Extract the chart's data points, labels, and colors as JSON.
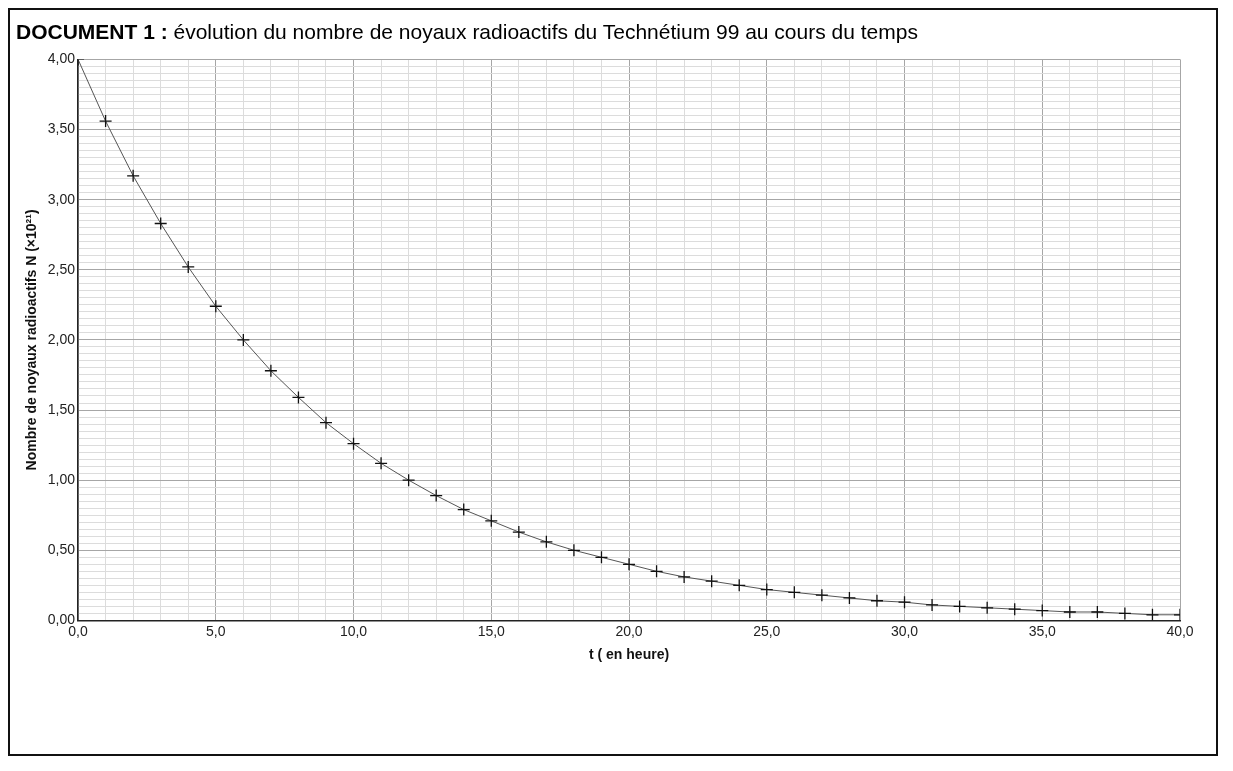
{
  "chart_data": {
    "type": "line",
    "title": "DOCUMENT 1 : évolution du nombre de noyaux radioactifs du Technétium 99 au cours du temps",
    "xlabel": "t ( en heure)",
    "ylabel": "Nombre de noyaux radioactifs N (×10²¹)",
    "x": [
      0,
      1,
      2,
      3,
      4,
      5,
      6,
      7,
      8,
      9,
      10,
      11,
      12,
      13,
      14,
      15,
      16,
      17,
      18,
      19,
      20,
      21,
      22,
      23,
      24,
      25,
      26,
      27,
      28,
      29,
      30,
      31,
      32,
      33,
      34,
      35,
      36,
      37,
      38,
      39,
      40
    ],
    "series": [
      {
        "color": "#555555",
        "values": [
          4.0,
          3.56,
          3.17,
          2.83,
          2.52,
          2.24,
          2.0,
          1.78,
          1.59,
          1.41,
          1.26,
          1.12,
          1.0,
          0.89,
          0.79,
          0.71,
          0.63,
          0.56,
          0.5,
          0.45,
          0.4,
          0.35,
          0.31,
          0.28,
          0.25,
          0.22,
          0.2,
          0.18,
          0.16,
          0.14,
          0.13,
          0.11,
          0.1,
          0.09,
          0.08,
          0.07,
          0.06,
          0.06,
          0.05,
          0.04,
          0.04
        ]
      }
    ],
    "xlim": [
      0,
      40
    ],
    "ylim": [
      0,
      4
    ],
    "xticks": [
      {
        "value": 0,
        "label": "0,0"
      },
      {
        "value": 1,
        "label": null
      },
      {
        "value": 2,
        "label": null
      },
      {
        "value": 3,
        "label": null
      },
      {
        "value": 4,
        "label": null
      },
      {
        "value": 5,
        "label": "5,0"
      },
      {
        "value": 6,
        "label": null
      },
      {
        "value": 7,
        "label": null
      },
      {
        "value": 8,
        "label": null
      },
      {
        "value": 9,
        "label": null
      },
      {
        "value": 10,
        "label": "10,0"
      },
      {
        "value": 11,
        "label": null
      },
      {
        "value": 12,
        "label": null
      },
      {
        "value": 13,
        "label": null
      },
      {
        "value": 14,
        "label": null
      },
      {
        "value": 15,
        "label": "15,0"
      },
      {
        "value": 16,
        "label": null
      },
      {
        "value": 17,
        "label": null
      },
      {
        "value": 18,
        "label": null
      },
      {
        "value": 19,
        "label": null
      },
      {
        "value": 20,
        "label": "20,0"
      },
      {
        "value": 21,
        "label": null
      },
      {
        "value": 22,
        "label": null
      },
      {
        "value": 23,
        "label": null
      },
      {
        "value": 24,
        "label": null
      },
      {
        "value": 25,
        "label": "25,0"
      },
      {
        "value": 26,
        "label": null
      },
      {
        "value": 27,
        "label": null
      },
      {
        "value": 28,
        "label": null
      },
      {
        "value": 29,
        "label": null
      },
      {
        "value": 30,
        "label": "30,0"
      },
      {
        "value": 31,
        "label": null
      },
      {
        "value": 32,
        "label": null
      },
      {
        "value": 33,
        "label": null
      },
      {
        "value": 34,
        "label": null
      },
      {
        "value": 35,
        "label": "35,0"
      },
      {
        "value": 36,
        "label": null
      },
      {
        "value": 37,
        "label": null
      },
      {
        "value": 38,
        "label": null
      },
      {
        "value": 39,
        "label": null
      },
      {
        "value": 40,
        "label": "40,0"
      }
    ],
    "yticks": [
      {
        "value": 0,
        "label": "0,00"
      },
      {
        "value": 0.05,
        "label": null
      },
      {
        "value": 0.1,
        "label": null
      },
      {
        "value": 0.15,
        "label": null
      },
      {
        "value": 0.2,
        "label": null
      },
      {
        "value": 0.25,
        "label": null
      },
      {
        "value": 0.3,
        "label": null
      },
      {
        "value": 0.35,
        "label": null
      },
      {
        "value": 0.4,
        "label": null
      },
      {
        "value": 0.45,
        "label": null
      },
      {
        "value": 0.5,
        "label": "0,50"
      },
      {
        "value": 0.55,
        "label": null
      },
      {
        "value": 0.6,
        "label": null
      },
      {
        "value": 0.65,
        "label": null
      },
      {
        "value": 0.7,
        "label": null
      },
      {
        "value": 0.75,
        "label": null
      },
      {
        "value": 0.8,
        "label": null
      },
      {
        "value": 0.85,
        "label": null
      },
      {
        "value": 0.9,
        "label": null
      },
      {
        "value": 0.95,
        "label": null
      },
      {
        "value": 1,
        "label": "1,00"
      },
      {
        "value": 1.05,
        "label": null
      },
      {
        "value": 1.1,
        "label": null
      },
      {
        "value": 1.15,
        "label": null
      },
      {
        "value": 1.2,
        "label": null
      },
      {
        "value": 1.25,
        "label": null
      },
      {
        "value": 1.3,
        "label": null
      },
      {
        "value": 1.35,
        "label": null
      },
      {
        "value": 1.4,
        "label": null
      },
      {
        "value": 1.45,
        "label": null
      },
      {
        "value": 1.5,
        "label": "1,50"
      },
      {
        "value": 1.55,
        "label": null
      },
      {
        "value": 1.6,
        "label": null
      },
      {
        "value": 1.65,
        "label": null
      },
      {
        "value": 1.7,
        "label": null
      },
      {
        "value": 1.75,
        "label": null
      },
      {
        "value": 1.8,
        "label": null
      },
      {
        "value": 1.85,
        "label": null
      },
      {
        "value": 1.9,
        "label": null
      },
      {
        "value": 1.95,
        "label": null
      },
      {
        "value": 2,
        "label": "2,00"
      },
      {
        "value": 2.05,
        "label": null
      },
      {
        "value": 2.1,
        "label": null
      },
      {
        "value": 2.15,
        "label": null
      },
      {
        "value": 2.2,
        "label": null
      },
      {
        "value": 2.25,
        "label": null
      },
      {
        "value": 2.3,
        "label": null
      },
      {
        "value": 2.35,
        "label": null
      },
      {
        "value": 2.4,
        "label": null
      },
      {
        "value": 2.45,
        "label": null
      },
      {
        "value": 2.5,
        "label": "2,50"
      },
      {
        "value": 2.55,
        "label": null
      },
      {
        "value": 2.6,
        "label": null
      },
      {
        "value": 2.65,
        "label": null
      },
      {
        "value": 2.7,
        "label": null
      },
      {
        "value": 2.75,
        "label": null
      },
      {
        "value": 2.8,
        "label": null
      },
      {
        "value": 2.85,
        "label": null
      },
      {
        "value": 2.9,
        "label": null
      },
      {
        "value": 2.95,
        "label": null
      },
      {
        "value": 3,
        "label": "3,00"
      },
      {
        "value": 3.05,
        "label": null
      },
      {
        "value": 3.1,
        "label": null
      },
      {
        "value": 3.15,
        "label": null
      },
      {
        "value": 3.2,
        "label": null
      },
      {
        "value": 3.25,
        "label": null
      },
      {
        "value": 3.3,
        "label": null
      },
      {
        "value": 3.35,
        "label": null
      },
      {
        "value": 3.4,
        "label": null
      },
      {
        "value": 3.45,
        "label": null
      },
      {
        "value": 3.5,
        "label": "3,50"
      },
      {
        "value": 3.55,
        "label": null
      },
      {
        "value": 3.6,
        "label": null
      },
      {
        "value": 3.65,
        "label": null
      },
      {
        "value": 3.7,
        "label": null
      },
      {
        "value": 3.75,
        "label": null
      },
      {
        "value": 3.8,
        "label": null
      },
      {
        "value": 3.85,
        "label": null
      },
      {
        "value": 3.9,
        "label": null
      },
      {
        "value": 3.95,
        "label": null
      },
      {
        "value": 4,
        "label": "4,00"
      }
    ],
    "grid": true,
    "legend": false,
    "marker": "cross",
    "line_style": "solid"
  }
}
